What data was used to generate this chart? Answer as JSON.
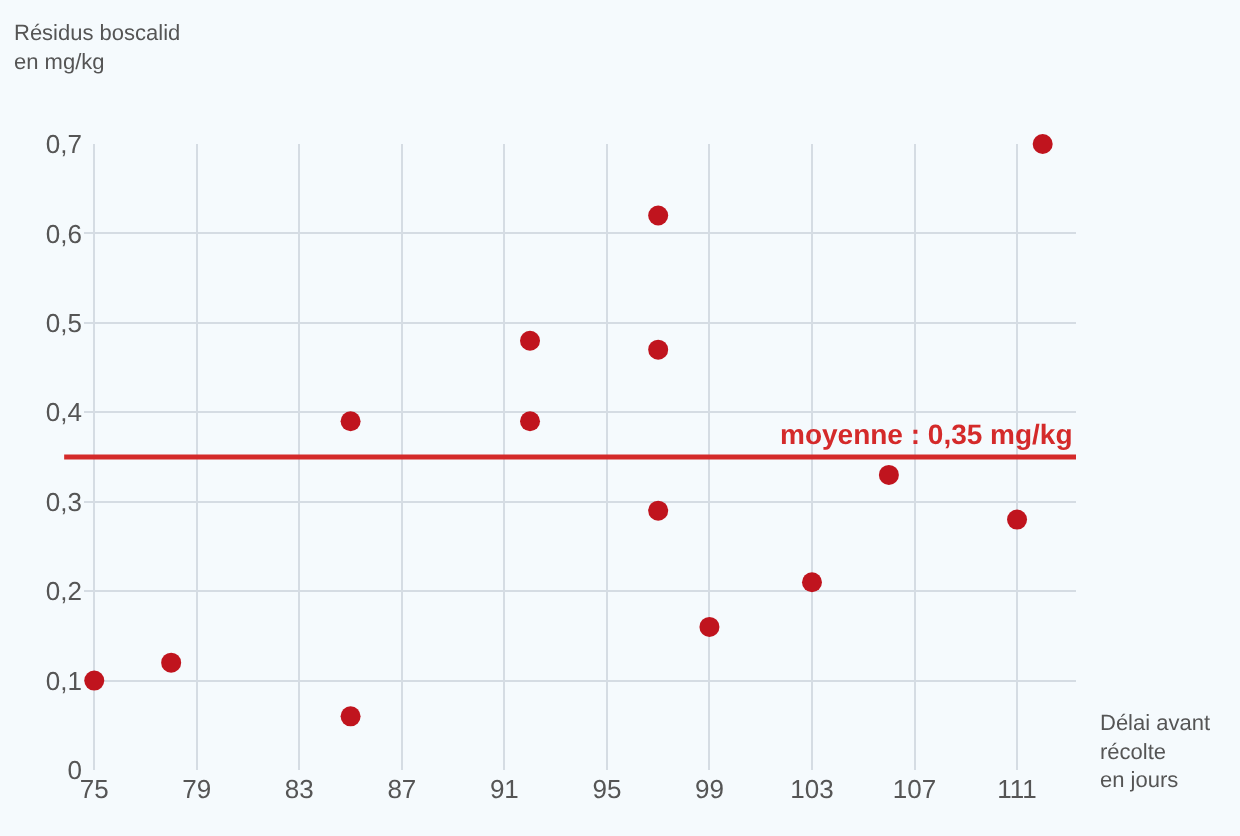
{
  "chart_data": {
    "type": "scatter",
    "ylabel": "Résidus boscalid\nen mg/kg",
    "xlabel": "Délai avant\nrécolte\nen jours",
    "x": [
      75,
      78,
      85,
      85,
      92,
      92,
      97,
      97,
      97,
      99,
      103,
      106,
      111,
      112
    ],
    "series": [
      {
        "color": "#c0141e",
        "values": [
          0.1,
          0.12,
          0.06,
          0.39,
          0.39,
          0.48,
          0.62,
          0.47,
          0.29,
          0.16,
          0.21,
          0.33,
          0.28,
          0.7
        ]
      }
    ],
    "xlim": [
      74.6,
      113.3
    ],
    "xticks": [
      75,
      79,
      83,
      87,
      91,
      95,
      99,
      103,
      107,
      111
    ],
    "ylim": [
      0,
      0.7
    ],
    "yticks": [
      0,
      {
        "value": 0.1,
        "label": "0,1"
      },
      {
        "value": 0.2,
        "label": "0,2"
      },
      {
        "value": 0.3,
        "label": "0,3"
      },
      {
        "value": 0.4,
        "label": "0,4"
      },
      {
        "value": 0.5,
        "label": "0,5"
      },
      {
        "value": 0.6,
        "label": "0,6"
      },
      {
        "value": 0.7,
        "label": "0,7"
      }
    ],
    "ref_lines": [
      {
        "axis": "y",
        "value": 0.35,
        "label": "moyenne : 0,35 mg/kg",
        "color": "#d42a2a"
      }
    ],
    "grid": true,
    "marker": "circle"
  }
}
